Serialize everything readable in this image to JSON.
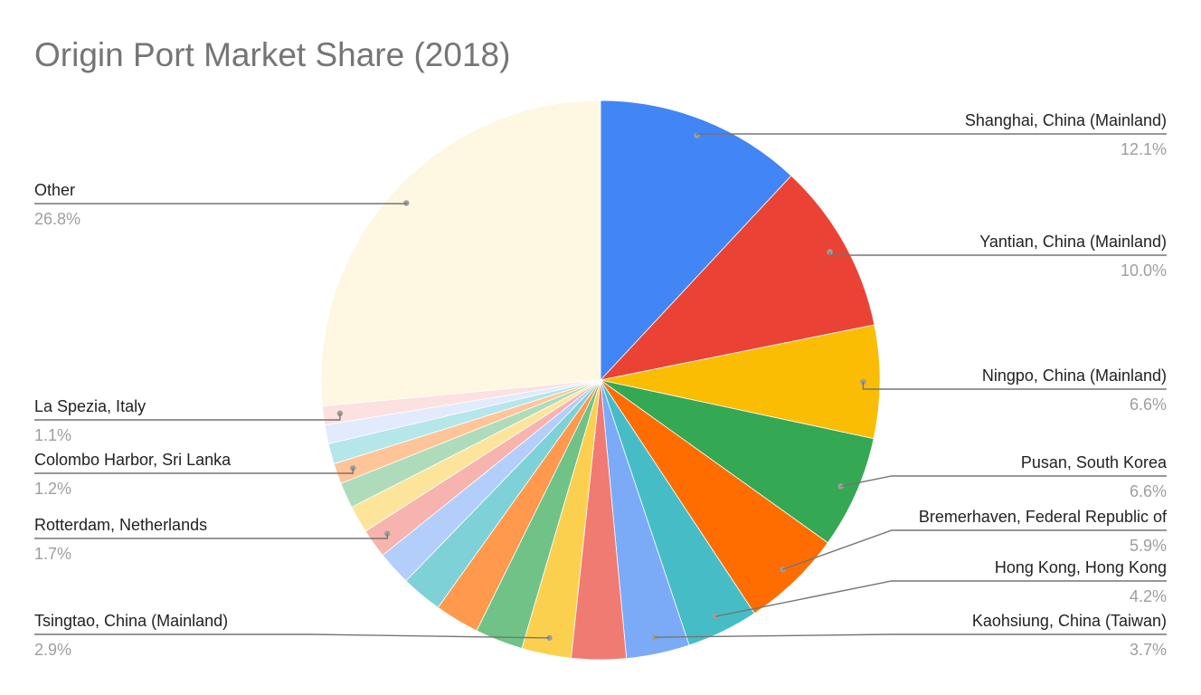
{
  "chart_data": {
    "type": "pie",
    "title": "Origin Port Market Share (2018)",
    "slices": [
      {
        "label": "Shanghai, China (Mainland)",
        "value": 12.1,
        "pct_label": "12.1%",
        "color": "#4285f4"
      },
      {
        "label": "Yantian, China (Mainland)",
        "value": 10.0,
        "pct_label": "10.0%",
        "color": "#ea4335"
      },
      {
        "label": "Ningpo, China (Mainland)",
        "value": 6.6,
        "pct_label": "6.6%",
        "color": "#fbbc04"
      },
      {
        "label": "Pusan, South Korea",
        "value": 6.6,
        "pct_label": "6.6%",
        "color": "#34a853"
      },
      {
        "label": "Bremerhaven, Federal Republic of",
        "value": 5.9,
        "pct_label": "5.9%",
        "color": "#ff6d01"
      },
      {
        "label": "Hong Kong, Hong Kong",
        "value": 4.2,
        "pct_label": "4.2%",
        "color": "#46bdc6"
      },
      {
        "label": "Kaohsiung, China (Taiwan)",
        "value": 3.7,
        "pct_label": "3.7%",
        "color": "#7baaf7"
      },
      {
        "label": "",
        "value": 3.2,
        "pct_label": "",
        "color": "#f07b72"
      },
      {
        "label": "Tsingtao, China (Mainland)",
        "value": 2.9,
        "pct_label": "2.9%",
        "color": "#fcd04f"
      },
      {
        "label": "",
        "value": 2.8,
        "pct_label": "",
        "color": "#71c287"
      },
      {
        "label": "",
        "value": 2.6,
        "pct_label": "",
        "color": "#ff994d"
      },
      {
        "label": "",
        "value": 2.4,
        "pct_label": "",
        "color": "#7ed1d7"
      },
      {
        "label": "",
        "value": 2.0,
        "pct_label": "",
        "color": "#b3cefb"
      },
      {
        "label": "Rotterdam, Netherlands",
        "value": 1.7,
        "pct_label": "1.7%",
        "color": "#f7b4ae"
      },
      {
        "label": "",
        "value": 1.6,
        "pct_label": "",
        "color": "#fde49b"
      },
      {
        "label": "",
        "value": 1.5,
        "pct_label": "",
        "color": "#aedcba"
      },
      {
        "label": "Colombo Harbor, Sri Lanka",
        "value": 1.2,
        "pct_label": "1.2%",
        "color": "#ffc599"
      },
      {
        "label": "",
        "value": 1.2,
        "pct_label": "",
        "color": "#b5e6e9"
      },
      {
        "label": "",
        "value": 1.1,
        "pct_label": "",
        "color": "#e1ebfd"
      },
      {
        "label": "La Spezia, Italy",
        "value": 1.1,
        "pct_label": "1.1%",
        "color": "#fbe1df"
      },
      {
        "label": "Other",
        "value": 26.8,
        "pct_label": "26.8%",
        "color": "#fef7e1"
      }
    ],
    "legend": "none",
    "label_style": "callout-lines"
  }
}
